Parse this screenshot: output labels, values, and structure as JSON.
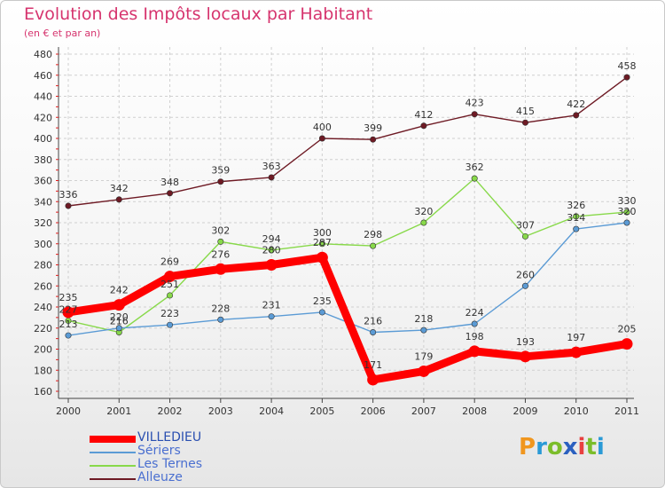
{
  "title": "Evolution des Impôts locaux par Habitant",
  "subtitle": "(en € et par an)",
  "logo": {
    "letters": [
      "P",
      "r",
      "o",
      "x",
      "i",
      "t",
      "i"
    ],
    "colors": [
      "#f0961e",
      "#2a9ad6",
      "#7bbd2a",
      "#2a60c0",
      "#e84040",
      "#7bbd2a",
      "#2a9ad6"
    ]
  },
  "chart_data": {
    "type": "line",
    "title": "Evolution des Impôts locaux par Habitant",
    "subtitle": "(en € et par an)",
    "xlabel": "",
    "ylabel": "",
    "x": [
      "2000",
      "2001",
      "2002",
      "2003",
      "2004",
      "2005",
      "2006",
      "2007",
      "2008",
      "2009",
      "2010",
      "2011"
    ],
    "ylim": [
      160,
      480
    ],
    "yticks": [
      160,
      180,
      200,
      220,
      240,
      260,
      280,
      300,
      320,
      340,
      360,
      380,
      400,
      420,
      440,
      460,
      480
    ],
    "grid": true,
    "legend_position": "bottom-left",
    "series": [
      {
        "name": "Alleuze",
        "color": "#6e1a24",
        "values": [
          336,
          342,
          348,
          359,
          363,
          400,
          399,
          412,
          423,
          415,
          422,
          458
        ]
      },
      {
        "name": "Les Ternes",
        "color": "#88d94a",
        "values": [
          227,
          216,
          251,
          302,
          294,
          300,
          298,
          320,
          362,
          307,
          326,
          330
        ]
      },
      {
        "name": "Sériers",
        "color": "#5b9bd5",
        "values": [
          213,
          220,
          223,
          228,
          231,
          235,
          216,
          218,
          224,
          260,
          314,
          320
        ]
      },
      {
        "name": "VILLEDIEU",
        "color": "#ff0000",
        "values": [
          235,
          242,
          269,
          276,
          280,
          287,
          171,
          179,
          198,
          193,
          197,
          205
        ]
      }
    ],
    "data_labels": [
      {
        "name": "Alleuze",
        "values": [
          "336",
          "342",
          "348",
          "359",
          "363",
          "400",
          "399",
          "412",
          "423",
          "415",
          "422",
          "458"
        ]
      },
      {
        "name": "Les Ternes",
        "values": [
          "227",
          "216",
          "251",
          "302",
          "294",
          "300",
          "298",
          "320",
          "362",
          "307",
          "326",
          "330"
        ]
      },
      {
        "name": "Sériers",
        "values": [
          "213",
          "220",
          "223",
          "228",
          "231",
          "235",
          "216",
          "218",
          "224",
          "260",
          "314",
          "320"
        ]
      },
      {
        "name": "VILLEDIEU",
        "values": [
          "235",
          "242",
          "269",
          "276",
          "280",
          "287",
          "171",
          "179",
          "198",
          "193",
          "197",
          "205"
        ]
      }
    ],
    "legend": [
      "VILLEDIEU",
      "Sériers",
      "Les Ternes",
      "Alleuze"
    ]
  }
}
